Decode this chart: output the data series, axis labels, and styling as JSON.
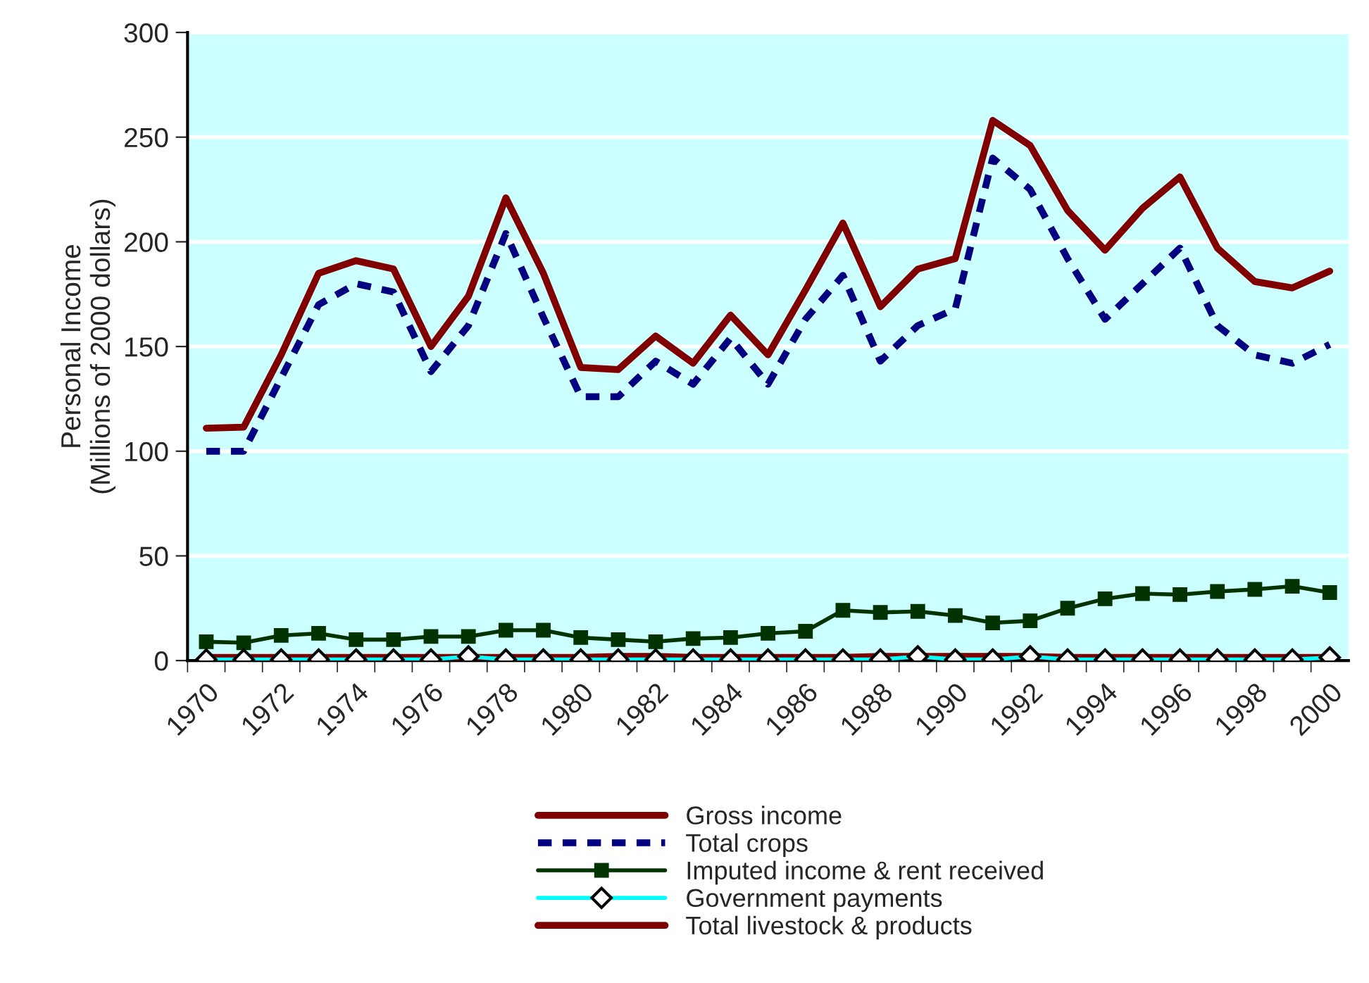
{
  "chart_data": {
    "type": "line",
    "ylabel": "Personal Income\n(Millions of 2000 dollars)",
    "categories": [
      "1970",
      null,
      "1972",
      null,
      "1974",
      null,
      "1976",
      null,
      "1978",
      null,
      "1980",
      null,
      "1982",
      null,
      "1984",
      null,
      "1986",
      null,
      "1988",
      null,
      "1990",
      null,
      "1992",
      null,
      "1994",
      null,
      "1996",
      null,
      "1998",
      null,
      "2000"
    ],
    "series": [
      {
        "name": "Gross income",
        "color": "#800000",
        "line_style": "solid",
        "marker": "none",
        "values": [
          111,
          111.5,
          146,
          185,
          191,
          187,
          150,
          174,
          221,
          185,
          140,
          139,
          155,
          142,
          165,
          146,
          177,
          209,
          169,
          187,
          192,
          258,
          246,
          215,
          196,
          216,
          231,
          197,
          181,
          178,
          186
        ]
      },
      {
        "name": "Total crops",
        "color": "#000080",
        "line_style": "dashed",
        "marker": "none",
        "values": [
          100,
          100,
          135,
          170,
          180,
          176,
          138,
          160,
          204,
          164,
          126,
          126,
          143,
          132,
          154,
          132,
          163,
          184,
          143,
          160,
          168,
          240,
          225,
          192,
          163,
          180,
          197,
          160,
          146,
          142,
          151
        ]
      },
      {
        "name": "Imputed income & rent received",
        "color": "#003300",
        "line_style": "solid",
        "marker": "square",
        "values": [
          9,
          8.5,
          12,
          13,
          10,
          10,
          11.5,
          11.5,
          14.5,
          14.5,
          11,
          10,
          9,
          10.5,
          11,
          13,
          14,
          24,
          23,
          23.5,
          21.5,
          18,
          19,
          25,
          29.5,
          32,
          31.5,
          33,
          34,
          35.5,
          32.5
        ]
      },
      {
        "name": "Government payments",
        "color": "#00ffff",
        "line_style": "solid",
        "marker": "diamond",
        "values": [
          0.5,
          0.5,
          0.5,
          0.5,
          0.5,
          0.5,
          0.5,
          2,
          0.5,
          0.5,
          0.5,
          0.5,
          0.5,
          0.5,
          0.5,
          0.5,
          0.5,
          0.5,
          0.5,
          2,
          0.5,
          0.5,
          2,
          0.5,
          0.5,
          0.5,
          0.5,
          0.5,
          0.5,
          0.5,
          1.5
        ]
      },
      {
        "name": "Total livestock & products",
        "color": "#800000",
        "line_style": "solid",
        "marker": "none",
        "values": [
          1.5,
          1.5,
          1.5,
          1.5,
          1.5,
          1.5,
          1.5,
          1.5,
          1.5,
          1.5,
          1.5,
          2,
          2,
          1.5,
          1.5,
          1.5,
          1.5,
          1.5,
          2,
          2,
          2,
          2,
          2,
          1.5,
          1.5,
          1.5,
          1.5,
          1.5,
          1.5,
          1.5,
          1.5
        ]
      }
    ],
    "ylim": [
      0,
      300
    ],
    "yticks": [
      0,
      50,
      100,
      150,
      200,
      250,
      300
    ],
    "grid": "y",
    "legend": "bottom"
  }
}
